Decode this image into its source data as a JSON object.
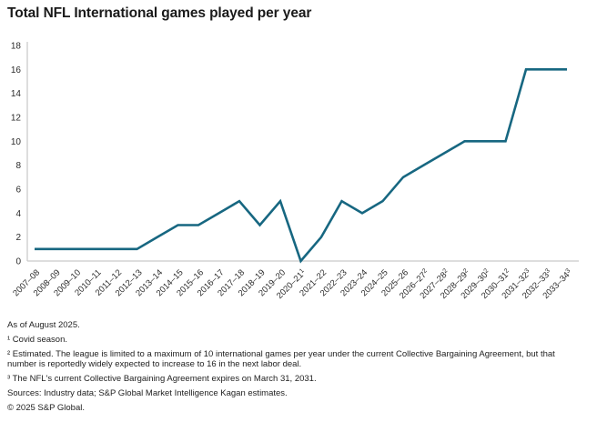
{
  "page": {
    "title": "Total NFL International games played per year"
  },
  "chart_data": {
    "type": "line",
    "title": "Total NFL International games played per year",
    "categories": [
      "2007–08",
      "2008–09",
      "2009–10",
      "2010–11",
      "2011–12",
      "2012–13",
      "2013–14",
      "2014–15",
      "2015–16",
      "2016–17",
      "2017–18",
      "2018–19",
      "2019–20",
      "2020–21",
      "2021–22",
      "2022–23",
      "2023–24",
      "2024–25",
      "2025–26",
      "2026–27",
      "2027–28",
      "2028–29",
      "2029–30",
      "2030–31",
      "2031–32",
      "2032–33",
      "2033–34"
    ],
    "category_superscripts": [
      "",
      "",
      "",
      "",
      "",
      "",
      "",
      "",
      "",
      "",
      "",
      "",
      "",
      "1",
      "",
      "",
      "",
      "",
      "",
      "2",
      "2",
      "2",
      "2",
      "2",
      "3",
      "3",
      "3"
    ],
    "values": [
      1,
      1,
      1,
      1,
      1,
      1,
      2,
      3,
      3,
      4,
      5,
      3,
      5,
      0,
      2,
      5,
      4,
      5,
      7,
      8,
      9,
      10,
      10,
      10,
      16,
      16,
      16
    ],
    "xlabel": "",
    "ylabel": "",
    "ylim": [
      0,
      18
    ],
    "ytick_step": 2,
    "grid": "off",
    "legend": "none",
    "line_color": "#176781",
    "axis_color": "#cbcbcb",
    "tick_label_color": "#2b2b2b"
  },
  "footer": {
    "lines": [
      "As of August 2025.",
      "¹ Covid season.",
      "² Estimated. The league is limited to a maximum of 10 international games per year under the current Collective Bargaining Agreement, but that number is reportedly widely expected to increase to 16 in the next labor deal.",
      "³ The NFL's current Collective Bargaining Agreement expires on March 31, 2031.",
      "Sources: Industry data; S&P Global Market Intelligence Kagan estimates.",
      "© 2025 S&P Global."
    ]
  }
}
